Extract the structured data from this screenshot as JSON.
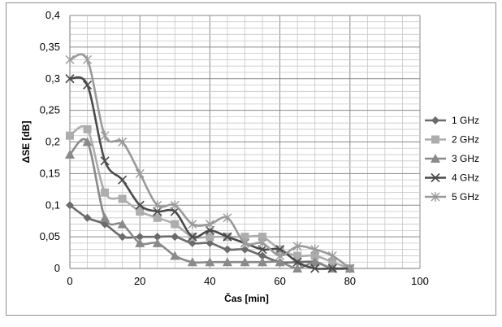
{
  "chart_data": {
    "type": "line",
    "title": "",
    "xlabel": "Čas [min]",
    "ylabel": "ΔSE [dB]",
    "xlim": [
      0,
      100
    ],
    "ylim": [
      0,
      0.4
    ],
    "x_ticks": [
      "0",
      "20",
      "40",
      "60",
      "80",
      "100"
    ],
    "y_ticks": [
      "0",
      "0,05",
      "0,1",
      "0,15",
      "0,2",
      "0,25",
      "0,3",
      "0,35",
      "0,4"
    ],
    "grid": true,
    "legend_position": "right",
    "series": [
      {
        "name": "1 GHz",
        "color": "#6b6b6b",
        "marker": "diamond",
        "x": [
          0,
          5,
          10,
          15,
          20,
          25,
          30,
          35,
          40,
          45,
          50,
          55,
          60,
          65,
          70,
          75,
          80
        ],
        "y": [
          0.1,
          0.08,
          0.07,
          0.05,
          0.05,
          0.05,
          0.05,
          0.04,
          0.04,
          0.03,
          0.03,
          0.02,
          0.01,
          0.01,
          0.01,
          0.0,
          0.0
        ]
      },
      {
        "name": "2 GHz",
        "color": "#adadad",
        "marker": "square",
        "x": [
          0,
          5,
          10,
          15,
          20,
          25,
          30,
          35,
          40,
          45,
          50,
          55,
          60,
          65,
          70,
          75,
          80
        ],
        "y": [
          0.21,
          0.22,
          0.12,
          0.11,
          0.09,
          0.08,
          0.07,
          0.05,
          0.05,
          0.05,
          0.05,
          0.05,
          0.03,
          0.02,
          0.02,
          0.01,
          0.0
        ]
      },
      {
        "name": "3 GHz",
        "color": "#8a8a8a",
        "marker": "triangle",
        "x": [
          0,
          5,
          10,
          15,
          20,
          25,
          30,
          35,
          40,
          45,
          50,
          55,
          60,
          65,
          70,
          75,
          80
        ],
        "y": [
          0.18,
          0.2,
          0.08,
          0.07,
          0.04,
          0.04,
          0.02,
          0.01,
          0.01,
          0.01,
          0.01,
          0.01,
          0.01,
          0.0,
          0.01,
          0.0,
          0.0
        ]
      },
      {
        "name": "4 GHz",
        "color": "#4a4a4a",
        "marker": "x",
        "x": [
          0,
          5,
          10,
          15,
          20,
          25,
          30,
          35,
          40,
          45,
          50,
          55,
          60,
          65,
          70,
          75,
          80
        ],
        "y": [
          0.3,
          0.29,
          0.17,
          0.14,
          0.1,
          0.09,
          0.09,
          0.05,
          0.06,
          0.05,
          0.04,
          0.03,
          0.03,
          0.01,
          0.0,
          0.0,
          0.0
        ]
      },
      {
        "name": "5 GHz",
        "color": "#9a9a9a",
        "marker": "star",
        "x": [
          0,
          5,
          10,
          15,
          20,
          25,
          30,
          35,
          40,
          45,
          50,
          55,
          60,
          65,
          70,
          75,
          80
        ],
        "y": [
          0.33,
          0.33,
          0.21,
          0.2,
          0.15,
          0.1,
          0.1,
          0.07,
          0.07,
          0.08,
          0.04,
          0.04,
          0.02,
          0.035,
          0.03,
          0.02,
          0.0
        ]
      }
    ]
  }
}
